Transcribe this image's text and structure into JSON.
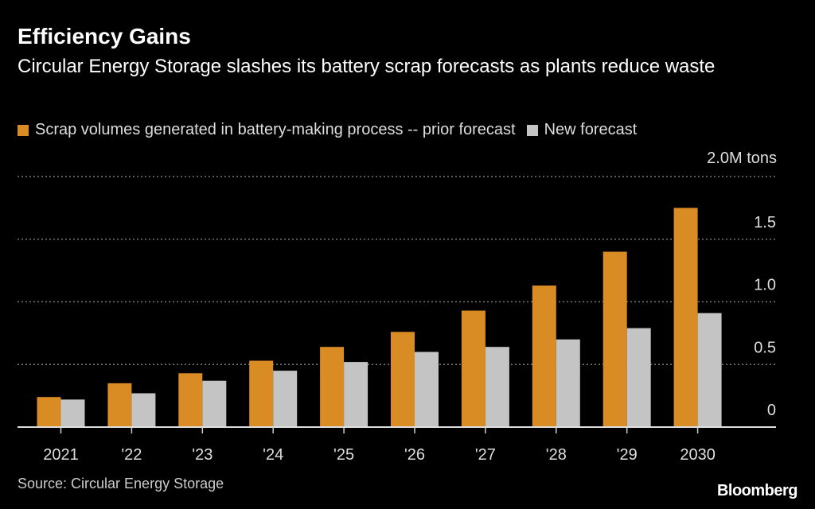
{
  "title": "Efficiency Gains",
  "subtitle": "Circular Energy Storage slashes its battery scrap forecasts as plants reduce waste",
  "source": "Source: Circular Energy Storage",
  "logo": "Bloomberg",
  "chart_data": {
    "type": "bar",
    "categories": [
      "2021",
      "'22",
      "'23",
      "'24",
      "'25",
      "'26",
      "'27",
      "'28",
      "'29",
      "2030"
    ],
    "series": [
      {
        "name": "Scrap volumes generated in battery-making process -- prior forecast",
        "color": "#d98b24",
        "values": [
          0.24,
          0.35,
          0.43,
          0.53,
          0.64,
          0.76,
          0.93,
          1.13,
          1.4,
          1.75
        ]
      },
      {
        "name": "New forecast",
        "color": "#c4c4c4",
        "values": [
          0.22,
          0.27,
          0.37,
          0.45,
          0.52,
          0.6,
          0.64,
          0.7,
          0.79,
          0.91
        ]
      }
    ],
    "ylabel": "2.0M tons",
    "yticks": [
      0,
      0.5,
      1.0,
      1.5,
      2.0
    ],
    "ytick_labels": [
      "0",
      "0.5",
      "1.0",
      "1.5",
      ""
    ],
    "ylim": [
      0,
      2.0
    ],
    "grid": true,
    "legend": "top-left"
  }
}
